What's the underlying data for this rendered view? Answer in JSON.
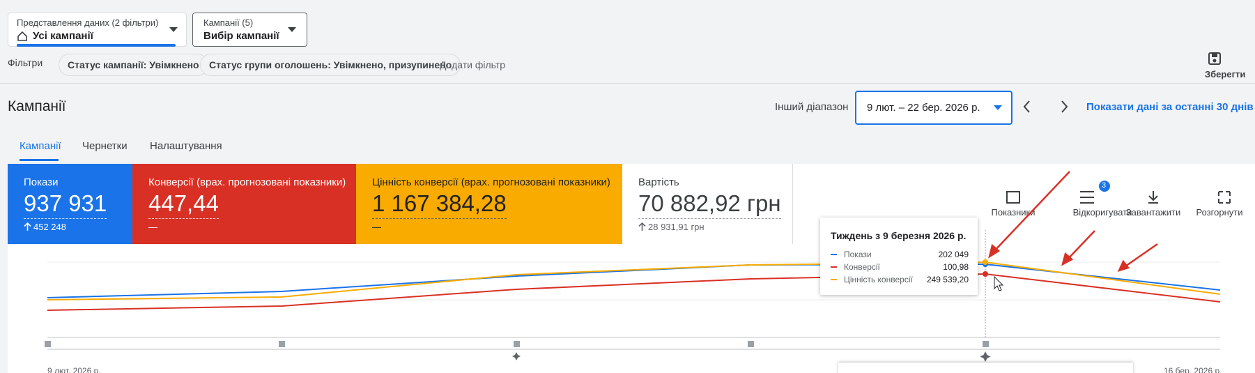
{
  "header": {
    "view_selector": {
      "label": "Представлення даних (2 фільтри)",
      "value": "Усі кампанії"
    },
    "campaign_selector": {
      "label": "Кампанії (5)",
      "value": "Вибір кампанії"
    }
  },
  "filters": {
    "label": "Фільтри",
    "chips": [
      "Статус кампанії: Увімкнено",
      "Статус групи оголошень: Увімкнено, призупинено"
    ],
    "add": "Додати фільтр",
    "save": "Зберегти"
  },
  "page": {
    "title": "Кампанії",
    "range_label": "Інший діапазон",
    "date_range": "9 лют. – 22 бер. 2026 р.",
    "last_30": "Показати дані за останні 30 днів"
  },
  "tabs": [
    "Кампанії",
    "Чернетки",
    "Налаштування"
  ],
  "metrics": [
    {
      "name": "Покази",
      "value": "937 931",
      "change": "452 248"
    },
    {
      "name": "Конверсії (врах. прогнозовані показники)",
      "value": "447,44",
      "change": "—"
    },
    {
      "name": "Цінність конверсії (врах. прогнозовані показники)",
      "value": "1 167 384,28",
      "change": "—"
    },
    {
      "name": "Вартість",
      "value": "70 882,92 грн",
      "change": "28 931,91 грн"
    }
  ],
  "toolbar": [
    {
      "label": "Показники"
    },
    {
      "label": "Відкоригувати",
      "badge": "3"
    },
    {
      "label": "Завантажити"
    },
    {
      "label": "Розгорнути"
    }
  ],
  "tooltip": {
    "title": "Тиждень з 9 березня 2026 р.",
    "rows": [
      {
        "name": "Покази",
        "value": "202 049"
      },
      {
        "name": "Конверсії",
        "value": "100,98"
      },
      {
        "name": "Цінність конверсії",
        "value": "249 539,20"
      }
    ]
  },
  "chart_axis": {
    "start": "9 лют. 2026 р.",
    "end": "16 бер. 2026 р."
  }
}
